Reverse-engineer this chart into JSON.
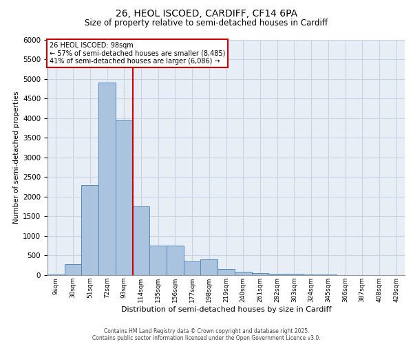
{
  "title_line1": "26, HEOL ISCOED, CARDIFF, CF14 6PA",
  "title_line2": "Size of property relative to semi-detached houses in Cardiff",
  "xlabel": "Distribution of semi-detached houses by size in Cardiff",
  "ylabel": "Number of semi-detached properties",
  "footer1": "Contains HM Land Registry data © Crown copyright and database right 2025.",
  "footer2": "Contains public sector information licensed under the Open Government Licence v3.0.",
  "annotation_line1": "26 HEOL ISCOED: 98sqm",
  "annotation_line2": "← 57% of semi-detached houses are smaller (8,485)",
  "annotation_line3": "41% of semi-detached houses are larger (6,086) →",
  "bar_labels": [
    "9sqm",
    "30sqm",
    "51sqm",
    "72sqm",
    "93sqm",
    "114sqm",
    "135sqm",
    "156sqm",
    "177sqm",
    "198sqm",
    "219sqm",
    "240sqm",
    "261sqm",
    "282sqm",
    "303sqm",
    "324sqm",
    "345sqm",
    "366sqm",
    "387sqm",
    "408sqm",
    "429sqm"
  ],
  "bar_values": [
    15,
    280,
    2300,
    4900,
    3950,
    1750,
    750,
    750,
    350,
    400,
    150,
    90,
    55,
    35,
    30,
    18,
    12,
    8,
    4,
    2,
    1
  ],
  "bar_color": "#aac4df",
  "bar_edge_color": "#5588bb",
  "grid_color": "#c8d4e4",
  "background_color": "#e8eef6",
  "vline_x": 4.5,
  "vline_color": "#cc0000",
  "ylim_max": 6000,
  "ytick_step": 500,
  "annotation_box_facecolor": "#ffffff",
  "annotation_box_edgecolor": "#cc0000",
  "fig_bg": "#ffffff"
}
